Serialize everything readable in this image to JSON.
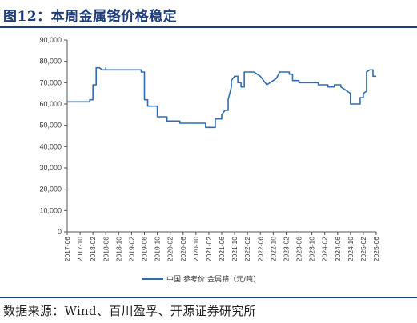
{
  "header": {
    "title": "图12：本周金属铬价格稳定"
  },
  "footer": {
    "source": "数据来源：Wind、百川盈孚、开源证券研究所"
  },
  "colors": {
    "series": "#2e6db4",
    "title": "#1f3d7a"
  },
  "chart_data": {
    "type": "line",
    "title": "",
    "xlabel": "",
    "ylabel": "",
    "ylim": [
      0,
      90000
    ],
    "yticks": [
      "0",
      "10,000",
      "20,000",
      "30,000",
      "40,000",
      "50,000",
      "60,000",
      "70,000",
      "80,000",
      "90,000"
    ],
    "xticks": [
      "2017-06",
      "2017-10",
      "2018-02",
      "2018-06",
      "2018-10",
      "2019-02",
      "2019-06",
      "2019-10",
      "2020-02",
      "2020-06",
      "2020-10",
      "2021-02",
      "2021-06",
      "2021-10",
      "2022-02",
      "2022-06",
      "2022-10",
      "2023-02",
      "2023-06",
      "2023-10",
      "2024-02",
      "2024-06",
      "2024-10",
      "2025-02",
      "2025-06"
    ],
    "xlim": [
      "2017-06",
      "2025-06"
    ],
    "grid": false,
    "legend": "bottom-center",
    "series": [
      {
        "name": "中国:参考价:金属铬（元/吨）",
        "points": [
          [
            "2017-06",
            61000
          ],
          [
            "2018-01",
            61000
          ],
          [
            "2018-01",
            62000
          ],
          [
            "2018-02",
            62000
          ],
          [
            "2018-02",
            63000
          ],
          [
            "2018-02",
            68000
          ],
          [
            "2018-02",
            69000
          ],
          [
            "2018-03",
            69000
          ],
          [
            "2018-03",
            77000
          ],
          [
            "2018-04",
            77000
          ],
          [
            "2018-05",
            76000
          ],
          [
            "2018-06",
            76000
          ],
          [
            "2018-06",
            77000
          ],
          [
            "2018-06",
            76000
          ],
          [
            "2019-05",
            76000
          ],
          [
            "2019-05",
            75000
          ],
          [
            "2019-06",
            75000
          ],
          [
            "2019-06",
            70000
          ],
          [
            "2019-06",
            62000
          ],
          [
            "2019-07",
            62000
          ],
          [
            "2019-07",
            59000
          ],
          [
            "2019-10",
            59000
          ],
          [
            "2019-10",
            54000
          ],
          [
            "2020-01",
            54000
          ],
          [
            "2020-01",
            52000
          ],
          [
            "2020-05",
            52000
          ],
          [
            "2020-05",
            51000
          ],
          [
            "2021-01",
            51000
          ],
          [
            "2021-01",
            49000
          ],
          [
            "2021-04",
            49000
          ],
          [
            "2021-04",
            53000
          ],
          [
            "2021-06",
            53000
          ],
          [
            "2021-06",
            55000
          ],
          [
            "2021-07",
            57000
          ],
          [
            "2021-08",
            57000
          ],
          [
            "2021-08",
            62000
          ],
          [
            "2021-09",
            68000
          ],
          [
            "2021-09",
            71000
          ],
          [
            "2021-10",
            73000
          ],
          [
            "2021-11",
            73000
          ],
          [
            "2021-11",
            70000
          ],
          [
            "2021-12",
            70000
          ],
          [
            "2021-12",
            68000
          ],
          [
            "2022-01",
            68000
          ],
          [
            "2022-01",
            75000
          ],
          [
            "2022-04",
            75000
          ],
          [
            "2022-05",
            74000
          ],
          [
            "2022-06",
            73000
          ],
          [
            "2022-07",
            71000
          ],
          [
            "2022-08",
            69000
          ],
          [
            "2022-09",
            70000
          ],
          [
            "2022-10",
            71000
          ],
          [
            "2022-11",
            72000
          ],
          [
            "2022-12",
            75000
          ],
          [
            "2023-03",
            75000
          ],
          [
            "2023-03",
            74000
          ],
          [
            "2023-04",
            74000
          ],
          [
            "2023-04",
            71000
          ],
          [
            "2023-06",
            71000
          ],
          [
            "2023-06",
            70000
          ],
          [
            "2023-12",
            70000
          ],
          [
            "2023-12",
            69000
          ],
          [
            "2024-03",
            69000
          ],
          [
            "2024-03",
            68000
          ],
          [
            "2024-05",
            68000
          ],
          [
            "2024-05",
            69000
          ],
          [
            "2024-07",
            69000
          ],
          [
            "2024-07",
            68000
          ],
          [
            "2024-08",
            67000
          ],
          [
            "2024-09",
            66000
          ],
          [
            "2024-10",
            65000
          ],
          [
            "2024-10",
            60000
          ],
          [
            "2025-01",
            60000
          ],
          [
            "2025-01",
            63000
          ],
          [
            "2025-02",
            63000
          ],
          [
            "2025-02",
            65000
          ],
          [
            "2025-03",
            66000
          ],
          [
            "2025-03",
            69000
          ],
          [
            "2025-03",
            75000
          ],
          [
            "2025-04",
            76000
          ],
          [
            "2025-05",
            76000
          ],
          [
            "2025-05",
            73000
          ],
          [
            "2025-06",
            73000
          ]
        ]
      }
    ]
  }
}
